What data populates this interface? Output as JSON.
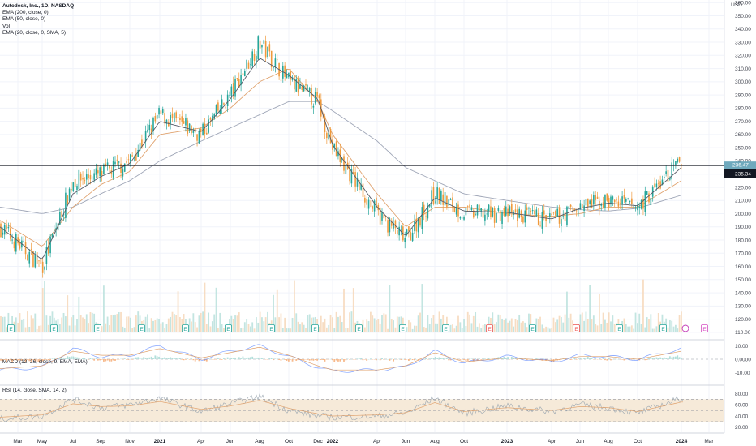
{
  "header": {
    "title": "Autodesk, Inc., 1D, NASDAQ",
    "indicators": [
      "EMA (200, close, 0)",
      "EMA (50, close, 0)",
      "Vol",
      "EMA (20, close, 0, SMA, 5)"
    ]
  },
  "price_axis": {
    "currency": "USD",
    "labels": [
      "360.00",
      "350.00",
      "340.00",
      "330.00",
      "320.00",
      "310.00",
      "300.00",
      "290.00",
      "280.00",
      "270.00",
      "260.00",
      "250.00",
      "240.00",
      "230.00",
      "220.00",
      "210.00",
      "200.00",
      "190.00",
      "180.00",
      "170.00",
      "160.00",
      "150.00",
      "140.00",
      "130.00",
      "120.00",
      "110.00"
    ],
    "last_price": "236.47",
    "countdown": "05:29:10",
    "ref_price": "235.34"
  },
  "macd": {
    "title": "MACD (12, 26, close, 9, EMA, EMA)",
    "labels": [
      "10.00",
      "0.0000",
      "-10.00"
    ]
  },
  "rsi": {
    "title": "RSI (14, close, SMA, 14, 2)",
    "labels": [
      "80.00",
      "60.00",
      "40.00",
      "20.00"
    ]
  },
  "time_axis": {
    "labels": [
      "Mar",
      "May",
      "Jul",
      "Sep",
      "Nov",
      "2021",
      "Apr",
      "Jun",
      "Aug",
      "Oct",
      "Dec",
      "2022",
      "Apr",
      "Jun",
      "Aug",
      "Oct",
      "2023",
      "Apr",
      "Jun",
      "Aug",
      "Oct",
      "2024",
      "Mar"
    ],
    "bold": [
      "2021",
      "2022",
      "2023",
      "2024"
    ]
  },
  "earnings": {
    "marker": "E"
  },
  "colors": {
    "up": "#26a69a",
    "down": "#ef9a3c",
    "ema200": "#9fa6b7",
    "ema50": "#e0a36f",
    "ema20": "#555a66",
    "hline": "#131722",
    "price_tag": "#6fa9bd",
    "rsi_band": "#f6ead9",
    "earn_green": "#26a69a",
    "earn_red": "#ef5350",
    "earn_purple": "#c23ab8"
  },
  "chart_data": [
    {
      "type": "candlestick",
      "title": "Autodesk, Inc., 1D, NASDAQ",
      "ylim": [
        105,
        362
      ],
      "x": [
        "Mar",
        "May",
        "Jul",
        "Sep",
        "Nov",
        "2021",
        "Apr",
        "Jun",
        "Aug",
        "Oct",
        "Dec",
        "2022",
        "Apr",
        "Jun",
        "Aug",
        "Oct",
        "2023",
        "Apr",
        "Jun",
        "Aug",
        "Oct",
        "2024"
      ],
      "close": [
        190,
        160,
        225,
        230,
        240,
        275,
        260,
        290,
        330,
        300,
        285,
        250,
        200,
        180,
        215,
        200,
        200,
        195,
        205,
        210,
        205,
        240
      ],
      "ema200": [
        205,
        200,
        205,
        215,
        225,
        240,
        255,
        265,
        275,
        285,
        285,
        278,
        255,
        235,
        225,
        215,
        210,
        205,
        203,
        202,
        204,
        214
      ],
      "ema50": [
        195,
        175,
        205,
        222,
        232,
        260,
        265,
        280,
        300,
        310,
        285,
        260,
        215,
        190,
        205,
        205,
        200,
        198,
        200,
        205,
        205,
        225
      ],
      "ema20": [
        190,
        165,
        215,
        228,
        238,
        270,
        262,
        287,
        318,
        305,
        287,
        252,
        205,
        183,
        212,
        202,
        201,
        196,
        204,
        208,
        206,
        235
      ],
      "last_price": 236.47,
      "ref_price": 235.34
    },
    {
      "type": "line",
      "title": "MACD (12, 26, close, 9, EMA, EMA)",
      "ylim": [
        -15,
        15
      ],
      "x": [
        "Mar",
        "May",
        "Jul",
        "Sep",
        "Nov",
        "2021",
        "Apr",
        "Jun",
        "Aug",
        "Oct",
        "Dec",
        "2022",
        "Apr",
        "Jun",
        "Aug",
        "Oct",
        "2023",
        "Apr",
        "Jun",
        "Aug",
        "Oct",
        "2024"
      ],
      "series": [
        {
          "values": [
            -8,
            -6,
            8,
            2,
            3,
            10,
            0,
            6,
            10,
            2,
            -6,
            -9,
            -8,
            -6,
            6,
            -3,
            2,
            -2,
            3,
            2,
            0,
            8
          ]
        },
        {
          "values": [
            -7,
            -5,
            6,
            3,
            3,
            8,
            1,
            5,
            9,
            3,
            -5,
            -8,
            -8,
            -5,
            5,
            -2,
            1,
            -1,
            2,
            2,
            0,
            6
          ]
        }
      ]
    },
    {
      "type": "line",
      "title": "RSI (14, close, SMA, 14, 2)",
      "ylim": [
        20,
        85
      ],
      "x": [
        "Mar",
        "May",
        "Jul",
        "Sep",
        "Nov",
        "2021",
        "Apr",
        "Jun",
        "Aug",
        "Oct",
        "Dec",
        "2022",
        "Apr",
        "Jun",
        "Aug",
        "Oct",
        "2023",
        "Apr",
        "Jun",
        "Aug",
        "Oct",
        "2024"
      ],
      "series": [
        {
          "values": [
            35,
            40,
            70,
            55,
            60,
            72,
            48,
            62,
            75,
            50,
            40,
            38,
            40,
            45,
            72,
            45,
            58,
            48,
            60,
            55,
            45,
            72
          ]
        },
        {
          "values": [
            38,
            42,
            62,
            57,
            58,
            66,
            52,
            58,
            68,
            54,
            44,
            40,
            42,
            46,
            64,
            48,
            55,
            50,
            57,
            55,
            48,
            65
          ]
        }
      ]
    }
  ]
}
